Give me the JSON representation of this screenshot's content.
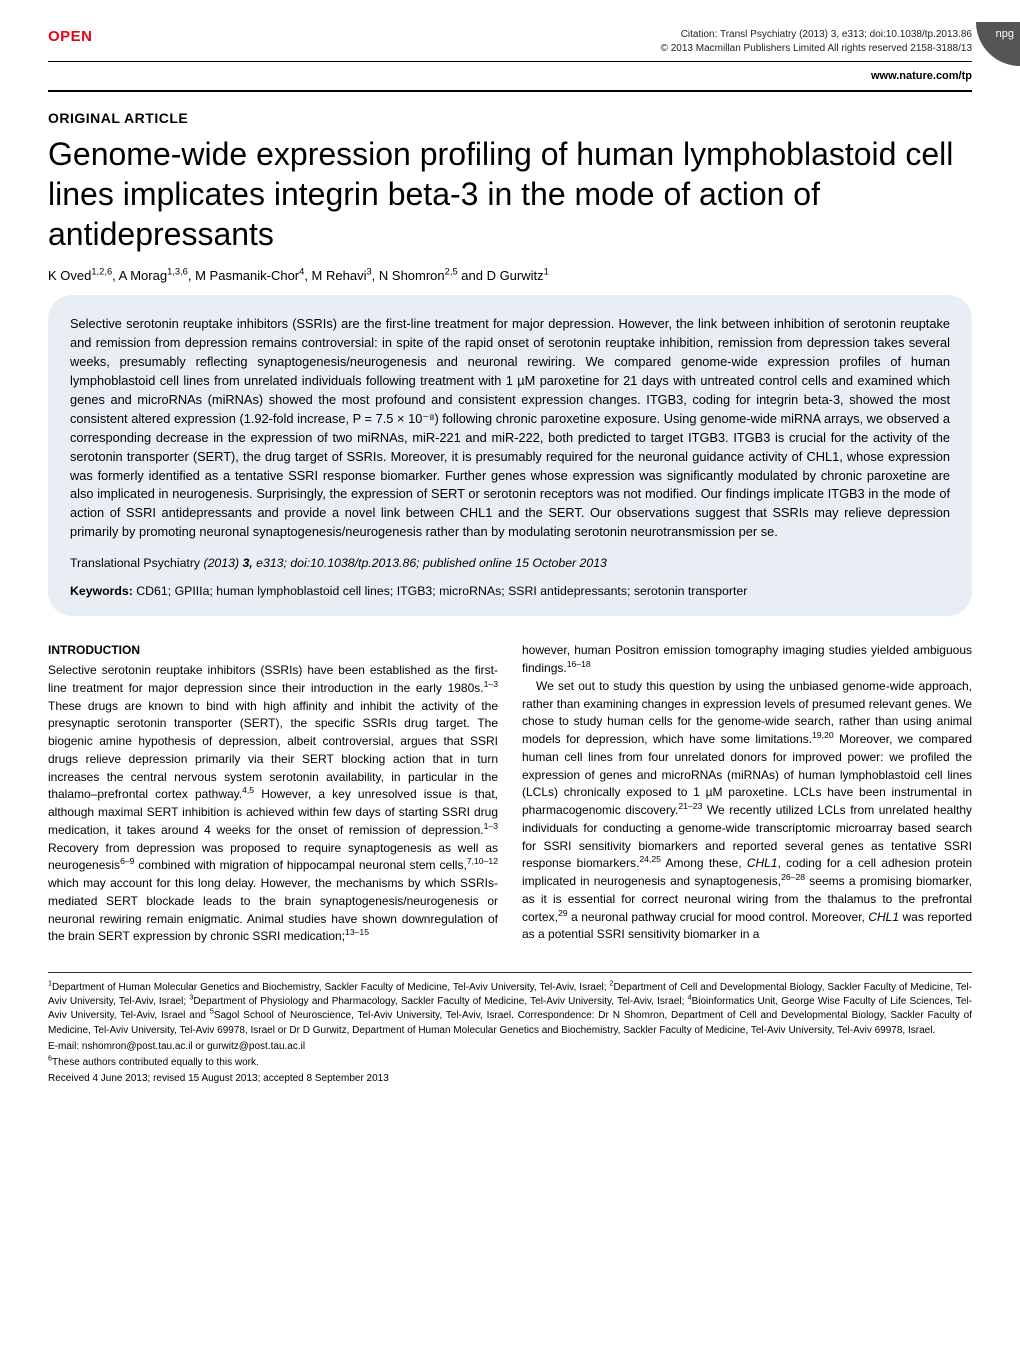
{
  "header": {
    "open_label": "OPEN",
    "citation": "Citation: Transl Psychiatry (2013) 3, e313; doi:10.1038/tp.2013.86",
    "copyright": "© 2013 Macmillan Publishers Limited   All rights reserved 2158-3188/13",
    "npg": "npg",
    "url": "www.nature.com/tp"
  },
  "article": {
    "type": "ORIGINAL ARTICLE",
    "title": "Genome-wide expression profiling of human lymphoblastoid cell lines implicates integrin beta-3 in the mode of action of antidepressants",
    "authors_html": "K Oved<sup>1,2,6</sup>, A Morag<sup>1,3,6</sup>, M Pasmanik-Chor<sup>4</sup>, M Rehavi<sup>3</sup>, N Shomron<sup>2,5</sup> and D Gurwitz<sup>1</sup>"
  },
  "abstract": {
    "text": "Selective serotonin reuptake inhibitors (SSRIs) are the first-line treatment for major depression. However, the link between inhibition of serotonin reuptake and remission from depression remains controversial: in spite of the rapid onset of serotonin reuptake inhibition, remission from depression takes several weeks, presumably reflecting synaptogenesis/neurogenesis and neuronal rewiring. We compared genome-wide expression profiles of human lymphoblastoid cell lines from unrelated individuals following treatment with 1 µM paroxetine for 21 days with untreated control cells and examined which genes and microRNAs (miRNAs) showed the most profound and consistent expression changes. ITGB3, coding for integrin beta-3, showed the most consistent altered expression (1.92-fold increase, P = 7.5 × 10⁻⁸) following chronic paroxetine exposure. Using genome-wide miRNA arrays, we observed a corresponding decrease in the expression of two miRNAs, miR-221 and miR-222, both predicted to target ITGB3. ITGB3 is crucial for the activity of the serotonin transporter (SERT), the drug target of SSRIs. Moreover, it is presumably required for the neuronal guidance activity of CHL1, whose expression was formerly identified as a tentative SSRI response biomarker. Further genes whose expression was significantly modulated by chronic paroxetine are also implicated in neurogenesis. Surprisingly, the expression of SERT or serotonin receptors was not modified. Our findings implicate ITGB3 in the mode of action of SSRI antidepressants and provide a novel link between CHL1 and the SERT. Our observations suggest that SSRIs may relieve depression primarily by promoting neuronal synaptogenesis/neurogenesis rather than by modulating serotonin neurotransmission per se.",
    "pub_info_html": "<span class=\"italic\">Translational Psychiatry</span> (2013) <b>3,</b> e313; doi:10.1038/tp.2013.86; published online 15 October 2013",
    "keywords_label": "Keywords:",
    "keywords": " CD61; GPIIIa; human lymphoblastoid cell lines; ITGB3; microRNAs; SSRI antidepressants; serotonin transporter"
  },
  "body": {
    "section_heading": "INTRODUCTION",
    "left_col_html": "Selective serotonin reuptake inhibitors (SSRIs) have been established as the first-line treatment for major depression since their introduction in the early 1980s.<sup>1–3</sup> These drugs are known to bind with high affinity and inhibit the activity of the presynaptic serotonin transporter (SERT), the specific SSRIs drug target. The biogenic amine hypothesis of depression, albeit controversial, argues that SSRI drugs relieve depression primarily via their SERT blocking action that in turn increases the central nervous system serotonin availability, in particular in the thalamo–prefrontal cortex pathway.<sup>4,5</sup> However, a key unresolved issue is that, although maximal SERT inhibition is achieved within few days of starting SSRI drug medication, it takes around 4 weeks for the onset of remission of depression.<sup>1–3</sup> Recovery from depression was proposed to require synaptogenesis as well as neurogenesis<sup>6–9</sup> combined with migration of hippocampal neuronal stem cells,<sup>7,10–12</sup> which may account for this long delay. However, the mechanisms by which SSRIs-mediated SERT blockade leads to the brain synaptogenesis/neurogenesis or neuronal rewiring remain enigmatic. Animal studies have shown downregulation of the brain SERT expression by chronic SSRI medication;<sup>13–15</sup>",
    "right_col_p1_html": "however, human Positron emission tomography imaging studies yielded ambiguous findings.<sup>16–18</sup>",
    "right_col_p2_html": "We set out to study this question by using the unbiased genome-wide approach, rather than examining changes in expression levels of presumed relevant genes. We chose to study human cells for the genome-wide search, rather than using animal models for depression, which have some limitations.<sup>19,20</sup> Moreover, we compared human cell lines from four unrelated donors for improved power: we profiled the expression of genes and microRNAs (miRNAs) of human lymphoblastoid cell lines (LCLs) chronically exposed to 1 µM paroxetine. LCLs have been instrumental in pharmacogenomic discovery.<sup>21–23</sup> We recently utilized LCLs from unrelated healthy individuals for conducting a genome-wide transcriptomic microarray based search for SSRI sensitivity biomarkers and reported several genes as tentative SSRI response biomarkers.<sup>24,25</sup> Among these, <span class=\"italic\">CHL1</span>, coding for a cell adhesion protein implicated in neurogenesis and synaptogenesis,<sup>26–28</sup> seems a promising biomarker, as it is essential for correct neuronal wiring from the thalamus to the prefrontal cortex,<sup>29</sup> a neuronal pathway crucial for mood control. Moreover, <span class=\"italic\">CHL1</span> was reported as a potential SSRI sensitivity biomarker in a"
  },
  "footnotes": {
    "affiliations_html": "<sup>1</sup>Department of Human Molecular Genetics and Biochemistry, Sackler Faculty of Medicine, Tel-Aviv University, Tel-Aviv, Israel; <sup>2</sup>Department of Cell and Developmental Biology, Sackler Faculty of Medicine, Tel-Aviv University, Tel-Aviv, Israel; <sup>3</sup>Department of Physiology and Pharmacology, Sackler Faculty of Medicine, Tel-Aviv University, Tel-Aviv, Israel; <sup>4</sup>Bioinformatics Unit, George Wise Faculty of Life Sciences, Tel-Aviv University, Tel-Aviv, Israel and <sup>5</sup>Sagol School of Neuroscience, Tel-Aviv University, Tel-Aviv, Israel. Correspondence: Dr N Shomron, Department of Cell and Developmental Biology, Sackler Faculty of Medicine, Tel-Aviv University, Tel-Aviv 69978, Israel or Dr D Gurwitz, Department of Human Molecular Genetics and Biochemistry, Sackler Faculty of Medicine, Tel-Aviv University, Tel-Aviv 69978, Israel.",
    "email": "E-mail: nshomron@post.tau.ac.il or gurwitz@post.tau.ac.il",
    "equal_html": "<sup>6</sup>These authors contributed equally to this work.",
    "received": "Received 4 June 2013; revised 15 August 2013; accepted 8 September 2013"
  },
  "style": {
    "open_color": "#e30613",
    "abstract_bg": "#e9eef5",
    "npg_bg": "#555555",
    "body_font_size": 12,
    "title_font_size": 32
  }
}
